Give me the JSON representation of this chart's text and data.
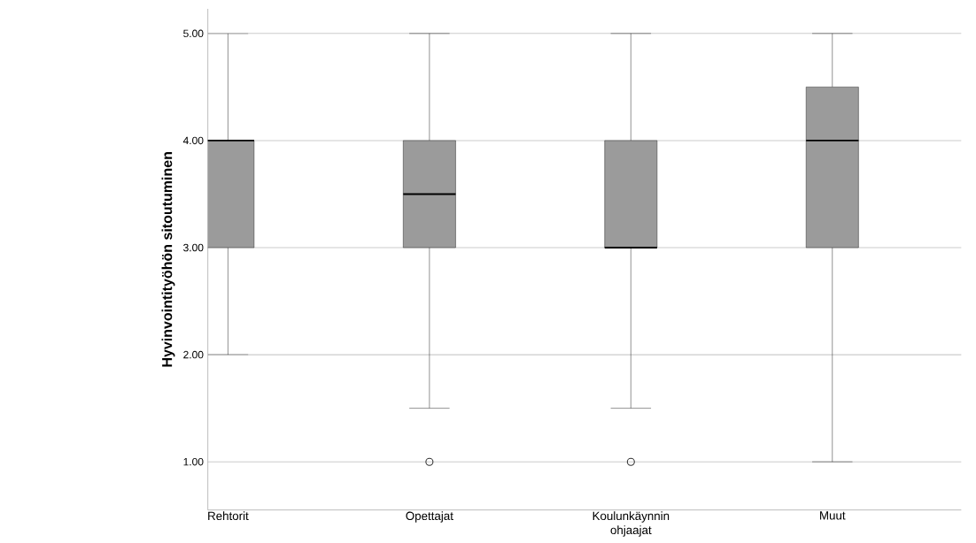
{
  "chart_data": {
    "type": "box",
    "ylabel": "Hyvinvointityöhön sitoutuminen",
    "categories": [
      "Rehtorit",
      "Opettajat",
      "Koulunkäynnin ohjaajat",
      "Muut"
    ],
    "boxes": [
      {
        "low": 2,
        "q1": 3,
        "median": 4,
        "q3": 4,
        "high": 5
      },
      {
        "low": 1.5,
        "q1": 3,
        "median": 3.5,
        "q3": 4,
        "high": 5,
        "outliers": [
          1
        ]
      },
      {
        "low": 1.5,
        "q1": 3,
        "median": 3,
        "q3": 4,
        "high": 5,
        "outliers": [
          1
        ]
      },
      {
        "low": 1,
        "q1": 3,
        "median": 4,
        "q3": 4.5,
        "high": 5
      }
    ],
    "color": "#9b9b9b",
    "ylim": [
      0.55,
      5.23
    ],
    "yticks": [
      {
        "value": 1,
        "label": "1.00"
      },
      {
        "value": 2,
        "label": "2.00"
      },
      {
        "value": 3,
        "label": "3.00"
      },
      {
        "value": 4,
        "label": "4.00"
      },
      {
        "value": 5,
        "label": "5.00"
      }
    ],
    "grid": "y"
  }
}
